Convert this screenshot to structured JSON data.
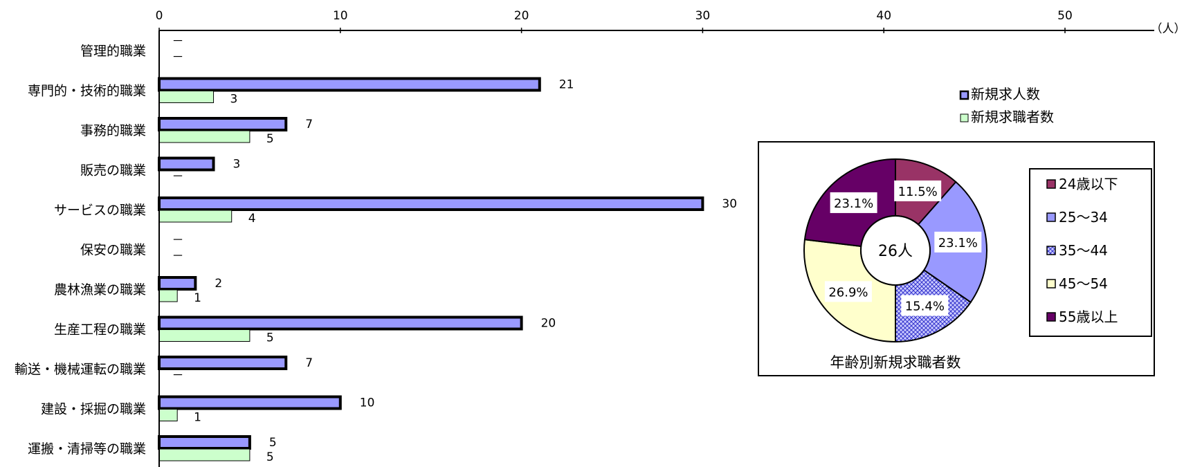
{
  "chart_data": [
    {
      "type": "bar",
      "orientation": "horizontal",
      "unit_label": "（人）",
      "categories": [
        "管理的職業",
        "専門的・技術的職業",
        "事務的職業",
        "販売の職業",
        "サービスの職業",
        "保安の職業",
        "農林漁業の職業",
        "生産工程の職業",
        "輸送・機械運転の職業",
        "建設・採掘の職業",
        "運搬・清掃等の職業"
      ],
      "series": [
        {
          "name": "新規求人数",
          "values": [
            null,
            21,
            7,
            3,
            30,
            null,
            2,
            20,
            7,
            10,
            5
          ],
          "color": "#9999ff"
        },
        {
          "name": "新規求職者数",
          "values": [
            null,
            3,
            5,
            null,
            4,
            null,
            1,
            5,
            null,
            1,
            5
          ],
          "color": "#ccffcc"
        }
      ],
      "value_labels": [
        [
          "－",
          "21",
          "7",
          "3",
          "30",
          "－",
          "2",
          "20",
          "7",
          "10",
          "5"
        ],
        [
          "－",
          "3",
          "5",
          "－",
          "4",
          "－",
          "1",
          "5",
          "－",
          "1",
          "5"
        ]
      ],
      "xlim": [
        0,
        55
      ],
      "xticks": [
        0,
        10,
        20,
        30,
        40,
        50
      ],
      "legend_position": "right"
    },
    {
      "type": "pie",
      "variant": "donut",
      "title": "年齢別新規求職者数",
      "center_label": "26人",
      "slices": [
        {
          "label": "24歳以下",
          "value": 11.5,
          "text": "11.5%",
          "color": "#993366"
        },
        {
          "label": "25～34",
          "value": 23.1,
          "text": "23.1%",
          "color": "#9999ff"
        },
        {
          "label": "35～44",
          "value": 15.4,
          "text": "15.4%",
          "color": "#ccccff",
          "pattern": "crosshatch"
        },
        {
          "label": "45～54",
          "value": 26.9,
          "text": "26.9%",
          "color": "#ffffcc"
        },
        {
          "label": "55歳以上",
          "value": 23.1,
          "text": "23.1%",
          "color": "#660066"
        }
      ],
      "legend_position": "right"
    }
  ]
}
